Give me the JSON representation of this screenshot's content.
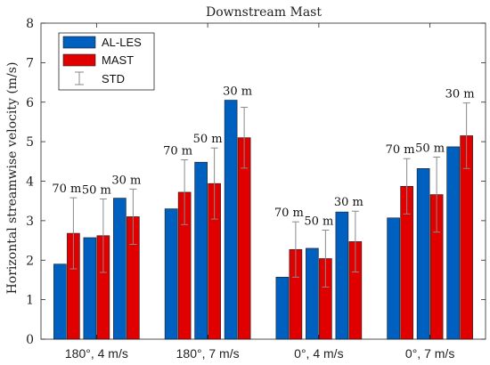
{
  "chart_data": {
    "type": "bar",
    "title": "Downstream Mast",
    "xlabel": "",
    "ylabel": "Horizontal streamwise velocity (m/s)",
    "ylim": [
      0,
      8
    ],
    "yticks": [
      0,
      1,
      2,
      3,
      4,
      5,
      6,
      7,
      8
    ],
    "grid": false,
    "legend_position": "top-left",
    "groups": [
      "180°, 4 m/s",
      "180°, 7 m/s",
      "0°, 4 m/s",
      "0°, 7 m/s"
    ],
    "heights": [
      "70 m",
      "50 m",
      "30 m"
    ],
    "series": [
      {
        "name": "AL-LES",
        "color": "#0060c0",
        "values": [
          [
            1.9,
            2.57,
            3.57
          ],
          [
            3.3,
            4.48,
            6.05
          ],
          [
            1.57,
            2.3,
            3.22
          ],
          [
            3.07,
            4.32,
            4.87
          ]
        ]
      },
      {
        "name": "MAST",
        "color": "#e00000",
        "values": [
          [
            2.68,
            2.62,
            3.1
          ],
          [
            3.72,
            3.94,
            5.1
          ],
          [
            2.27,
            2.04,
            2.47
          ],
          [
            3.87,
            3.66,
            5.15
          ]
        ],
        "std": [
          [
            0.9,
            0.93,
            0.7
          ],
          [
            0.82,
            0.9,
            0.77
          ],
          [
            0.7,
            0.72,
            0.77
          ],
          [
            0.7,
            0.95,
            0.83
          ]
        ]
      }
    ],
    "error_bar_label": "STD"
  }
}
